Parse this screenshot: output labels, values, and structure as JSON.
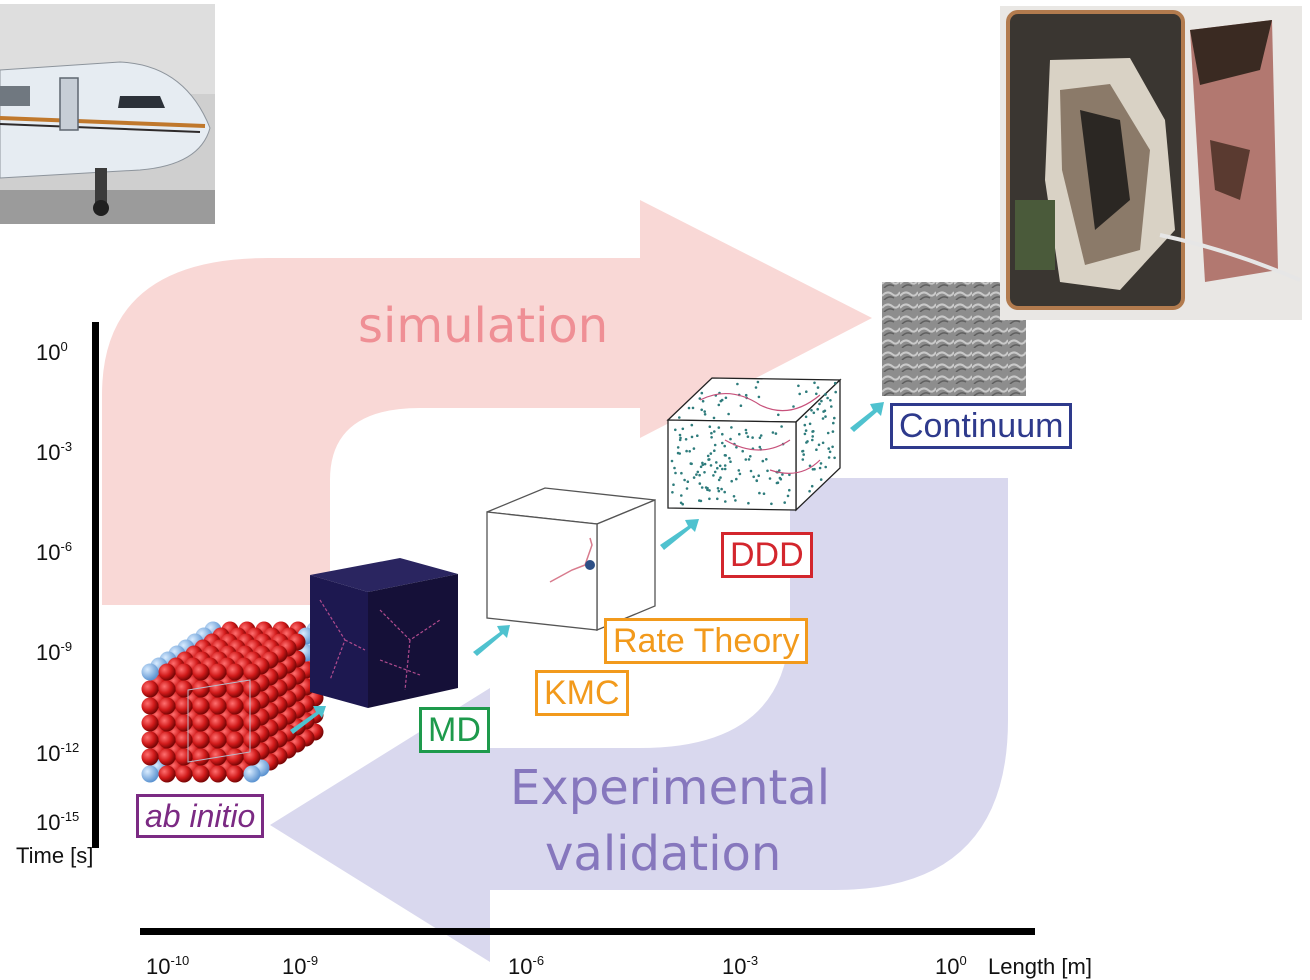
{
  "arrows": {
    "top_label": "simulation",
    "bottom_label_line1": "Experimental",
    "bottom_label_line2": "validation",
    "top_color": "#f9d8d6",
    "top_text_color": "#ef8f95",
    "bottom_color": "#d9d8ee",
    "bottom_text_color": "#8677bd"
  },
  "methods": [
    {
      "label": "ab initio",
      "color": "#7b2a83",
      "italic": true
    },
    {
      "label": "MD",
      "color": "#1e9a4c"
    },
    {
      "label": "KMC",
      "color": "#f29a1c"
    },
    {
      "label": "Rate Theory",
      "color": "#f29a1c"
    },
    {
      "label": "DDD",
      "color": "#d3262d"
    },
    {
      "label": "Continuum",
      "color": "#2e3a8c"
    }
  ],
  "time_axis": {
    "title": "Time [s]",
    "ticks": [
      {
        "base": "10",
        "exp": "0"
      },
      {
        "base": "10",
        "exp": "-3"
      },
      {
        "base": "10",
        "exp": "-6"
      },
      {
        "base": "10",
        "exp": "-9"
      },
      {
        "base": "10",
        "exp": "-12"
      },
      {
        "base": "10",
        "exp": "-15"
      }
    ]
  },
  "length_axis": {
    "title": "Length [m]",
    "ticks": [
      {
        "base": "10",
        "exp": "-10"
      },
      {
        "base": "10",
        "exp": "-9"
      },
      {
        "base": "10",
        "exp": "-6"
      },
      {
        "base": "10",
        "exp": "-3"
      },
      {
        "base": "10",
        "exp": "0"
      }
    ]
  },
  "photos": {
    "airplane": "airplane-photo",
    "battery": "burnt-battery-photo"
  }
}
